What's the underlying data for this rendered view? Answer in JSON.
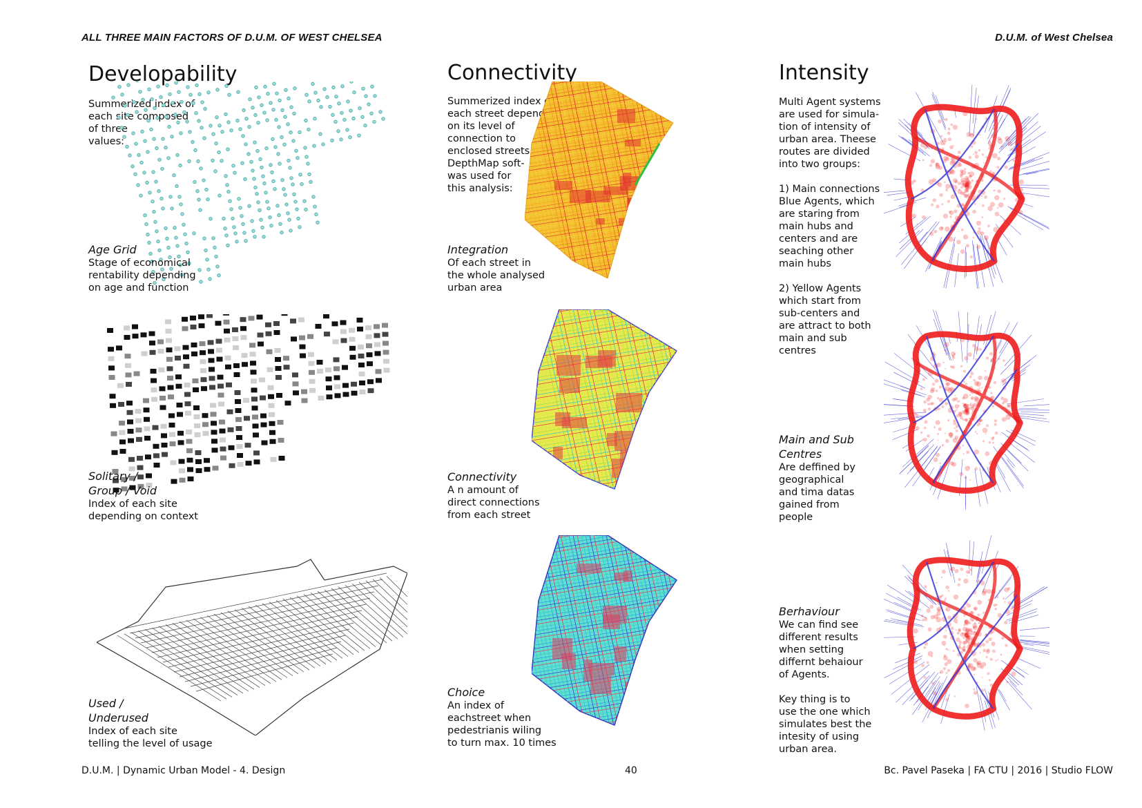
{
  "header": {
    "left": "ALL THREE MAIN FACTORS OF D.U.M. OF WEST CHELSEA",
    "right": "D.U.M. of West Chelsea"
  },
  "developability": {
    "title": "Developability",
    "intro": "Summerized index of\neach site composed\nof three\nvalues:",
    "age_grid": {
      "title": "Age Grid",
      "desc": "Stage of economical\nrentability depending\non age and function"
    },
    "solitary": {
      "title": "Solitary /\nGroup / Void",
      "desc": "Index of each site\ndepending on context"
    },
    "used": {
      "title": "Used /\nUnderused",
      "desc": "Index of each site\ntelling the level of usage"
    }
  },
  "connectivity": {
    "title": "Connectivity",
    "intro": "Summerized index of\neach street depending\non its level of\nconnection to\nenclosed streets.\nDepthMap soft-\nwas used for\nthis analysis:",
    "integration": {
      "title": "Integration",
      "desc": "Of each street in\nthe whole analysed\nurban area"
    },
    "connectivity": {
      "title": "Connectivity",
      "desc": "A n amount of\ndirect connections\nfrom each street"
    },
    "choice": {
      "title": "Choice",
      "desc": "An index of\neachstreet when\npedestrianis wiling\nto turn max. 10 times"
    }
  },
  "intensity": {
    "title": "Intensity",
    "intro": "Multi Agent systems\nare used for simula-\ntion of intensity of\nurban area. Theese\nroutes are divided\ninto two groups:\n\n1) Main connections\nBlue Agents, which\nare staring from\nmain hubs and\ncenters and are\nseaching other\nmain hubs\n\n2) Yellow Agents\nwhich start from\nsub-centers and\nare attract to both\nmain and sub\ncentres",
    "centres": {
      "title": "Main and Sub\nCentres",
      "desc": "Are deffined by\ngeographical\nand tima datas\ngained from\npeople"
    },
    "behaviour": {
      "title": "Berhaviour",
      "desc": "We can find see\ndifferent results\nwhen setting\ndiffernt behaiour\nof Agents.\n\nKey thing is to\nuse the one which\nsimulates best the\nintesity of using\nurban area."
    }
  },
  "footer": {
    "left": "D.U.M. | Dynamic Urban Model - 4. Design",
    "page_number": "40",
    "right": "Bc. Pavel Paseka | FA CTU | 2016 | Studio FLOW"
  },
  "colors": {
    "teal_points": "#3fa9a6",
    "agent_red": "#ee1c1c",
    "agent_blue": "#3b3bd6",
    "integration_warm": "#f0a020",
    "connectivity_cool": "#e8e040",
    "choice_cyan": "#40d0c0"
  }
}
